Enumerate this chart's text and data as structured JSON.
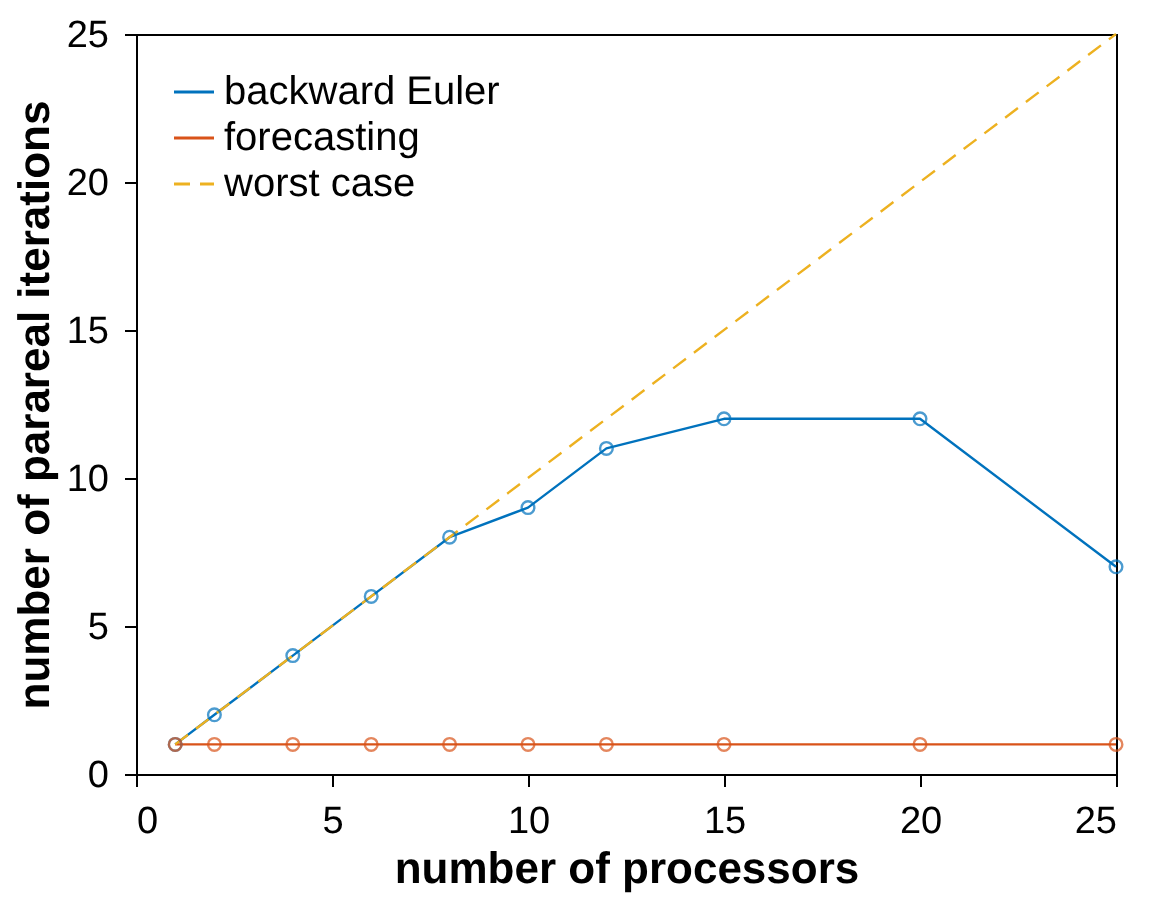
{
  "chart_data": {
    "type": "line",
    "xlabel": "number of processors",
    "ylabel": "number of parareal iterations",
    "xlim": [
      0,
      25
    ],
    "xticks": [
      0,
      5,
      10,
      15,
      20,
      25
    ],
    "ylim": [
      0,
      25
    ],
    "yticks": [
      0,
      5,
      10,
      15,
      20,
      25
    ],
    "grid": false,
    "legend": "top left",
    "series": [
      {
        "name": "backward Euler",
        "color": "#0072bd",
        "marker": "circle",
        "line_style": "solid",
        "x": [
          1,
          2,
          4,
          6,
          8,
          10,
          12,
          15,
          20,
          25
        ],
        "values": [
          1,
          2,
          4,
          6,
          8,
          9,
          11,
          12,
          12,
          7
        ]
      },
      {
        "name": "forecasting",
        "color": "#d95319",
        "marker": "circle",
        "line_style": "solid",
        "x": [
          1,
          2,
          4,
          6,
          8,
          10,
          12,
          15,
          20,
          25
        ],
        "values": [
          1,
          1,
          1,
          1,
          1,
          1,
          1,
          1,
          1,
          1
        ]
      },
      {
        "name": "worst case",
        "color": "#edb120",
        "marker": "none",
        "line_style": "dashed",
        "x": [
          1,
          25
        ],
        "values": [
          1,
          25
        ]
      }
    ]
  }
}
